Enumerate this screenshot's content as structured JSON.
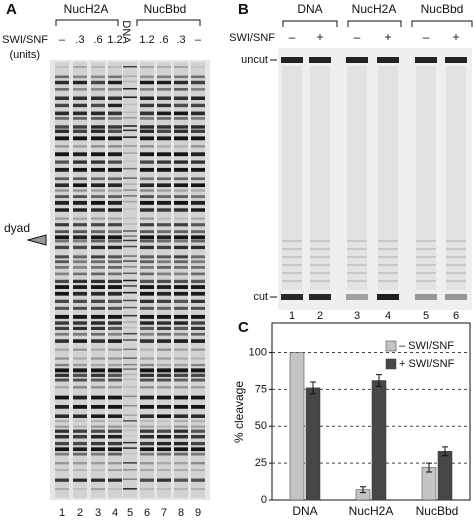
{
  "panel_a": {
    "label": "A",
    "groups": [
      "NucH2A",
      "NucBbd"
    ],
    "dna_label": "DNA",
    "treatment": "SWI/SNF",
    "units": "(units)",
    "amounts": [
      "–",
      ".3",
      ".6",
      "1.2",
      "1.2",
      ".6",
      ".3",
      "–"
    ],
    "lanes": [
      1,
      2,
      3,
      4,
      5,
      6,
      7,
      8,
      9
    ],
    "dyad": "dyad"
  },
  "panel_b": {
    "label": "B",
    "groups": [
      "DNA",
      "NucH2A",
      "NucBbd"
    ],
    "treatment": "SWI/SNF",
    "signs": [
      "–",
      "+",
      "–",
      "+",
      "–",
      "+"
    ],
    "uncut": "uncut",
    "cut": "cut",
    "lanes": [
      1,
      2,
      3,
      4,
      5,
      6
    ]
  },
  "chart_data": {
    "type": "bar",
    "panel_label": "C",
    "ylabel": "% cleavage",
    "categories": [
      "DNA",
      "NucH2A",
      "NucBbd"
    ],
    "series": [
      {
        "name": "– SWI/SNF",
        "color": "#c4c4c4",
        "values": [
          100,
          7,
          22
        ],
        "errors": [
          null,
          2,
          3
        ]
      },
      {
        "name": "+ SWI/SNF",
        "color": "#474747",
        "values": [
          76,
          81,
          33
        ],
        "errors": [
          4,
          4,
          3
        ]
      }
    ],
    "ylim": [
      0,
      120
    ],
    "yticks": [
      0,
      25,
      50,
      75,
      100
    ],
    "grid": true,
    "legend": "top-right"
  }
}
